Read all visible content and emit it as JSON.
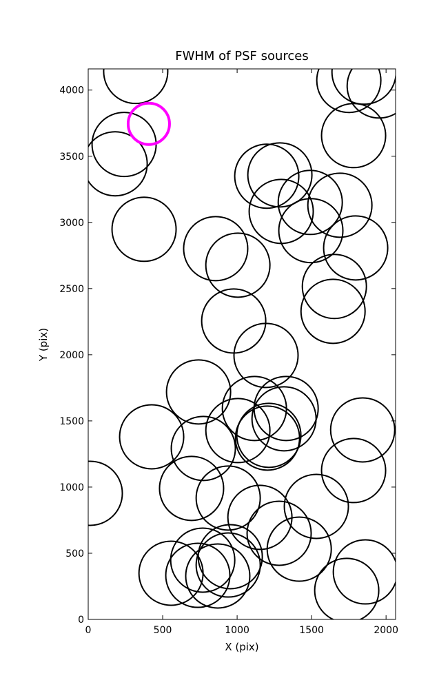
{
  "chart_data": {
    "type": "scatter",
    "title": "FWHM of PSF sources",
    "x_label": "X (pix)",
    "y_label": "Y (pix)",
    "xlim": [
      0,
      2064
    ],
    "ylim": [
      0,
      4160
    ],
    "xticks": [
      0,
      500,
      1000,
      1500,
      2000
    ],
    "yticks": [
      0,
      500,
      1000,
      1500,
      2000,
      2500,
      3000,
      3500,
      4000
    ],
    "grid": false,
    "series": [
      {
        "color": "#000000",
        "x": [
          319,
          1750,
          1852,
          1954,
          1782,
          181,
          241,
          375,
          1199,
          1287,
          1296,
          1491,
          1690,
          1495,
          1796,
          856,
          1005,
          1653,
          1644,
          977,
          1194,
          741,
          1116,
          1329,
          1315,
          1005,
          1213,
          1204,
          426,
          773,
          1843,
          1782,
          14,
          694,
          940,
          1153,
          1282,
          1532,
          1417,
          1861,
          1736,
          556,
          736,
          769,
          870,
          940,
          954
        ],
        "y": [
          4141,
          4073,
          4135,
          4031,
          3656,
          3443,
          3589,
          2948,
          3349,
          3359,
          3083,
          3151,
          3130,
          2938,
          2807,
          2802,
          2677,
          2516,
          2328,
          2255,
          1995,
          1719,
          1594,
          1594,
          1516,
          1427,
          1391,
          1370,
          1380,
          1292,
          1432,
          1125,
          953,
          990,
          917,
          771,
          651,
          854,
          531,
          359,
          219,
          349,
          333,
          448,
          328,
          411,
          474
        ]
      },
      {
        "color": "#ff00ff",
        "x": [
          407
        ],
        "y": [
          3745
        ]
      }
    ]
  }
}
